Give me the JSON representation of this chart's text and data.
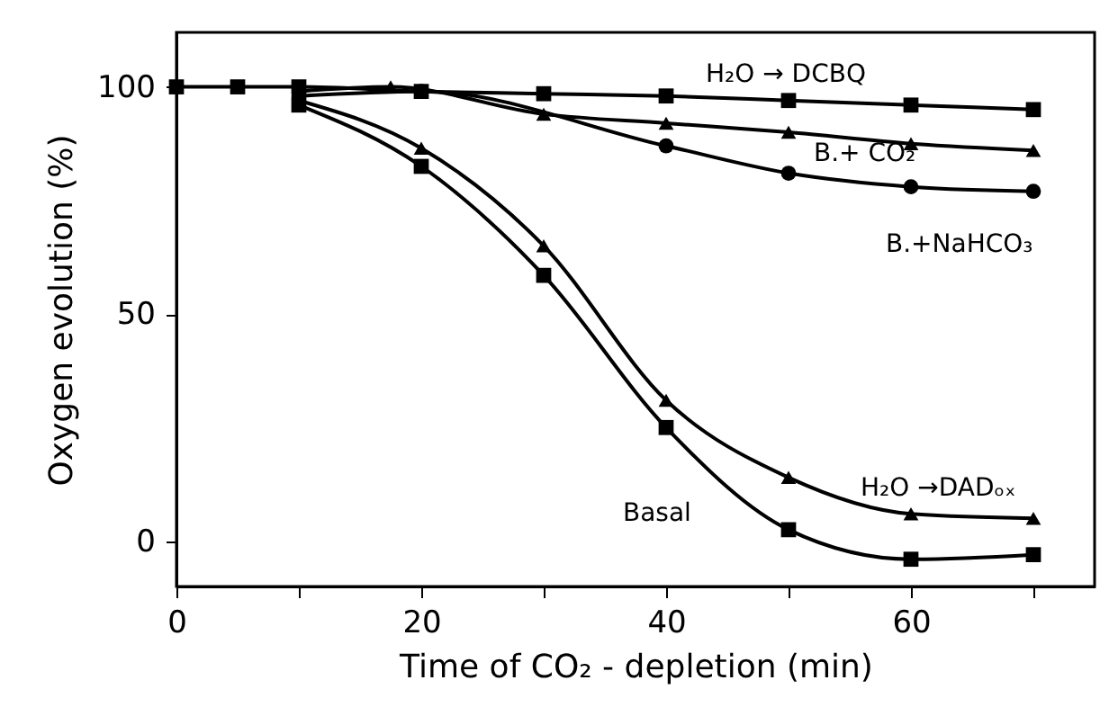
{
  "chart_data": {
    "type": "line",
    "xlabel": "Time of CO₂ - depletion (min)",
    "ylabel": "Oxygen evolution (%)",
    "xlim": [
      0,
      75
    ],
    "xticks": [
      0,
      {
        "value": 10,
        "label": null
      },
      20,
      {
        "value": 30,
        "label": null
      },
      40,
      {
        "value": 50,
        "label": null
      },
      60,
      {
        "value": 70,
        "label": null
      }
    ],
    "ylim": [
      -10,
      112
    ],
    "yticks": [
      0,
      50,
      100
    ],
    "grid": false,
    "line_style": "solid",
    "series": [
      {
        "name": "H₂O → DCBQ",
        "color": "#000000",
        "marker": "square",
        "x": [
          0,
          5,
          10,
          20,
          30,
          40,
          50,
          60,
          70
        ],
        "values": [
          100,
          100,
          100,
          99,
          98.5,
          98,
          97,
          96,
          95
        ]
      },
      {
        "name": "B.+ CO₂",
        "color": "#000000",
        "marker": "triangle",
        "x": [
          10,
          17.5,
          30,
          40,
          50,
          60,
          70
        ],
        "values": [
          99,
          100,
          94,
          92,
          90,
          87.5,
          86
        ]
      },
      {
        "name": "B.+NaHCO₃",
        "color": "#000000",
        "marker": "circle",
        "x": [
          10,
          20,
          30,
          40,
          50,
          60,
          70
        ],
        "values": [
          98,
          99,
          null,
          87,
          81,
          78,
          77
        ]
      },
      {
        "name": "H₂O →DADₒₓ",
        "color": "#000000",
        "marker": "triangle",
        "x": [
          10,
          20,
          30,
          40,
          50,
          60,
          70
        ],
        "values": [
          97,
          86.5,
          65,
          31,
          14,
          6,
          5
        ]
      },
      {
        "name": "Basal",
        "color": "#000000",
        "marker": "square",
        "x": [
          10,
          20,
          30,
          40,
          50,
          60,
          70
        ],
        "values": [
          96,
          82.5,
          58.5,
          25,
          2.5,
          -4,
          -3
        ]
      }
    ]
  }
}
